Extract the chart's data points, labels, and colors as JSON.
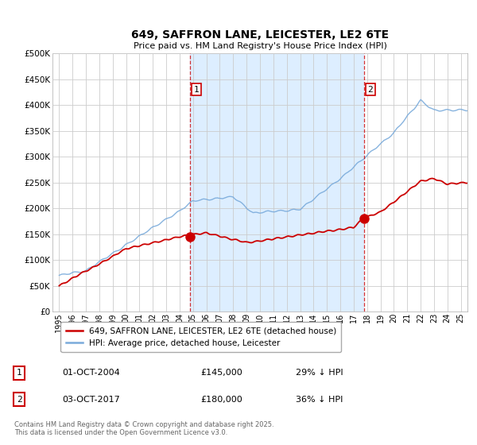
{
  "title": "649, SAFFRON LANE, LEICESTER, LE2 6TE",
  "subtitle": "Price paid vs. HM Land Registry's House Price Index (HPI)",
  "background_color": "#ffffff",
  "plot_bg_color": "#ffffff",
  "shade_color": "#ddeeff",
  "hpi_color": "#7aabdb",
  "price_color": "#cc0000",
  "marker_color": "#cc0000",
  "sale1_year": 2004.75,
  "sale1_price": 145000,
  "sale2_year": 2017.75,
  "sale2_price": 180000,
  "legend_entries": [
    "649, SAFFRON LANE, LEICESTER, LE2 6TE (detached house)",
    "HPI: Average price, detached house, Leicester"
  ],
  "table_rows": [
    {
      "num": "1",
      "date": "01-OCT-2004",
      "price": "£145,000",
      "hpi": "29% ↓ HPI"
    },
    {
      "num": "2",
      "date": "03-OCT-2017",
      "price": "£180,000",
      "hpi": "36% ↓ HPI"
    }
  ],
  "footnote": "Contains HM Land Registry data © Crown copyright and database right 2025.\nThis data is licensed under the Open Government Licence v3.0.",
  "xmin": 1994.5,
  "xmax": 2025.5,
  "ymin": 0,
  "ymax": 500000
}
